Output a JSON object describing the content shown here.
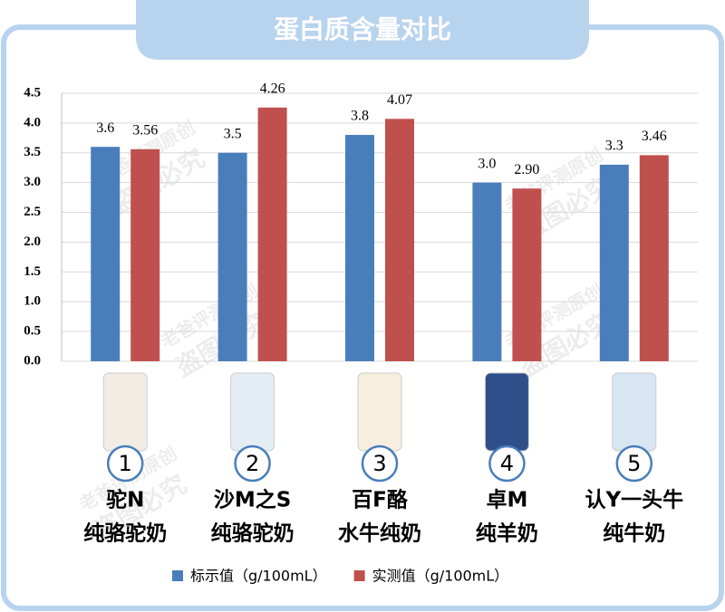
{
  "chart_data": {
    "type": "bar",
    "title": "蛋白质含量对比",
    "categories": [
      "驼N",
      "沙M之S",
      "百F酪",
      "卓M",
      "认Y一头牛"
    ],
    "category_numbers": [
      "1",
      "2",
      "3",
      "4",
      "5"
    ],
    "category_subtitles": [
      "纯骆驼奶",
      "纯骆驼奶",
      "水牛纯奶",
      "纯羊奶",
      "纯牛奶"
    ],
    "series": [
      {
        "name": "标示值（g/100mL）",
        "color": "#4a7ebb",
        "values": [
          3.6,
          3.5,
          3.8,
          3.0,
          3.3
        ],
        "value_labels": [
          "3.6",
          "3.5",
          "3.8",
          "3.0",
          "3.3"
        ]
      },
      {
        "name": "实测值（g/100mL）",
        "color": "#c0504d",
        "values": [
          3.56,
          4.26,
          4.07,
          2.9,
          3.46
        ],
        "value_labels": [
          "3.56",
          "4.26",
          "4.07",
          "2.90",
          "3.46"
        ]
      }
    ],
    "ylim": [
      0,
      4.5
    ],
    "yticks": [
      {
        "value": 0,
        "label": "0.0"
      },
      {
        "value": 0.5,
        "label": "0.5"
      },
      {
        "value": 1,
        "label": "1.0"
      },
      {
        "value": 1.5,
        "label": "1.5"
      },
      {
        "value": 2,
        "label": "2.0"
      },
      {
        "value": 2.5,
        "label": "2.5"
      },
      {
        "value": 3,
        "label": "3.0"
      },
      {
        "value": 3.5,
        "label": "3.5"
      },
      {
        "value": 4,
        "label": "4.0"
      },
      {
        "value": 4.5,
        "label": "4.5"
      }
    ],
    "grid": true,
    "legend": "bottom",
    "watermark": [
      "老爸评测原创",
      "盗图必究"
    ]
  }
}
